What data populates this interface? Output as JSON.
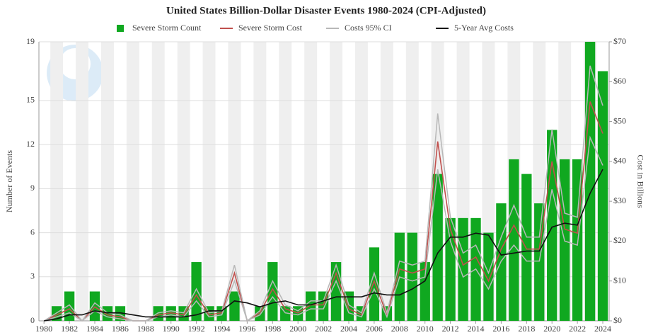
{
  "chart_data": {
    "type": "bar_line",
    "title": "United States Billion-Dollar Disaster Events 1980-2024 (CPI-Adjusted)",
    "y_label": "Number of Events",
    "y2_label": "Cost in Billions",
    "x": [
      1980,
      1981,
      1982,
      1983,
      1984,
      1985,
      1986,
      1987,
      1988,
      1989,
      1990,
      1991,
      1992,
      1993,
      1994,
      1995,
      1996,
      1997,
      1998,
      1999,
      2000,
      2001,
      2002,
      2003,
      2004,
      2005,
      2006,
      2007,
      2008,
      2009,
      2010,
      2011,
      2012,
      2013,
      2014,
      2015,
      2016,
      2017,
      2018,
      2019,
      2020,
      2021,
      2022,
      2023,
      2024
    ],
    "xlim": [
      1979.6,
      2024.5
    ],
    "xticks": [
      1980,
      1982,
      1984,
      1986,
      1988,
      1990,
      1992,
      1994,
      1996,
      1998,
      2000,
      2002,
      2004,
      2006,
      2008,
      2010,
      2012,
      2014,
      2016,
      2018,
      2020,
      2022,
      2024
    ],
    "ylim": [
      0,
      19
    ],
    "yticks": [
      0,
      3,
      6,
      9,
      12,
      15,
      19
    ],
    "y2lim": [
      0,
      70
    ],
    "y2ticks": [
      {
        "value": 0,
        "label": "$0"
      },
      {
        "value": 10,
        "label": "$10"
      },
      {
        "value": 20,
        "label": "$20"
      },
      {
        "value": 30,
        "label": "$30"
      },
      {
        "value": 40,
        "label": "$40"
      },
      {
        "value": 50,
        "label": "$50"
      },
      {
        "value": 60,
        "label": "$60"
      },
      {
        "value": 70,
        "label": "$70"
      }
    ],
    "series": [
      {
        "name": "Severe Storm Count",
        "kind": "bar",
        "color": "#10a820",
        "values": [
          0,
          1,
          2,
          0,
          2,
          1,
          1,
          0,
          0,
          1,
          1,
          1,
          4,
          1,
          1,
          2,
          0,
          1,
          4,
          1,
          1,
          2,
          2,
          4,
          2,
          1,
          5,
          1,
          6,
          6,
          4,
          10,
          7,
          7,
          7,
          6,
          8,
          11,
          10,
          8,
          13,
          11,
          11,
          19,
          17
        ]
      },
      {
        "name": "Severe Storm Cost",
        "kind": "line",
        "axis": "y2",
        "color": "#c0504d",
        "values": [
          0,
          1.5,
          3,
          0,
          3.5,
          1.5,
          1,
          0,
          0,
          1.5,
          2,
          1.5,
          6.5,
          1.5,
          2,
          12,
          0,
          2,
          8,
          3,
          2,
          4,
          4,
          12,
          3,
          1.5,
          10,
          1.5,
          13,
          12,
          13,
          45,
          23,
          14,
          16,
          10,
          18,
          24,
          18,
          18,
          40,
          23,
          22,
          55,
          47
        ]
      },
      {
        "name": "Costs 95% CI",
        "kind": "ci",
        "axis": "y2",
        "color": "#b8b8b8",
        "values": [
          0,
          2,
          4,
          0,
          4.5,
          2,
          1.5,
          0,
          0,
          2,
          2.5,
          2,
          8,
          2,
          2.5,
          14,
          0,
          2.5,
          10,
          4,
          2.5,
          5,
          5,
          14,
          4,
          2,
          12,
          2,
          15,
          14,
          15,
          52,
          26,
          17,
          19,
          12,
          21,
          29,
          21,
          21,
          48,
          27,
          26,
          64,
          54
        ],
        "lower": [
          0,
          1,
          2,
          0,
          2.5,
          1,
          0.5,
          0,
          0,
          1,
          1.5,
          1,
          5,
          1,
          1.5,
          10,
          0,
          1.5,
          6,
          2,
          1.5,
          3,
          3,
          10,
          2,
          1,
          8,
          1,
          11,
          10,
          11,
          38,
          20,
          11,
          13,
          8,
          15,
          19,
          15,
          15,
          33,
          20,
          19,
          46,
          39
        ]
      },
      {
        "name": "5-Year Avg Costs",
        "kind": "line",
        "axis": "y2",
        "color": "#111111",
        "values": [
          0,
          0.5,
          1.5,
          1.5,
          2.5,
          2,
          2,
          1.5,
          1,
          1,
          1,
          1,
          1.5,
          2.5,
          2.5,
          5,
          4.5,
          3.5,
          4.5,
          5,
          4,
          4,
          5,
          6,
          6,
          6,
          7,
          6.5,
          6.5,
          8,
          10,
          17,
          21,
          21,
          22,
          21.5,
          16.5,
          17,
          17.5,
          17.5,
          23.5,
          24.5,
          24,
          32,
          38
        ]
      }
    ]
  }
}
